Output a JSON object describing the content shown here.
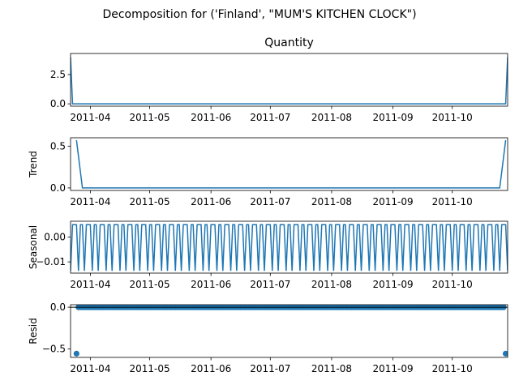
{
  "figure": {
    "suptitle": "Decomposition for ('Finland', \"MUM'S KITCHEN CLOCK\")"
  },
  "chart_data": [
    {
      "type": "line",
      "title": "Quantity",
      "ylabel": "",
      "xlim": [
        "2011-03-22",
        "2011-10-29"
      ],
      "ylim": [
        -0.2,
        4.3
      ],
      "yticks": [
        0.0,
        2.5
      ],
      "ytick_labels": [
        "0.0",
        "2.5"
      ],
      "xticks": [
        "2011-04-01",
        "2011-05-01",
        "2011-06-01",
        "2011-07-01",
        "2011-08-01",
        "2011-09-01",
        "2011-10-01"
      ],
      "xtick_labels": [
        "2011-04",
        "2011-05",
        "2011-06",
        "2011-07",
        "2011-08",
        "2011-09",
        "2011-10"
      ],
      "series": [
        {
          "x": [
            "2011-03-22",
            "2011-03-23",
            "2011-10-28",
            "2011-10-29"
          ],
          "y": [
            4.0,
            0.0,
            0.0,
            4.0
          ]
        }
      ]
    },
    {
      "type": "line",
      "title": "",
      "ylabel": "Trend",
      "xlim": [
        "2011-03-22",
        "2011-10-29"
      ],
      "ylim": [
        -0.03,
        0.6
      ],
      "yticks": [
        0.0,
        0.5
      ],
      "ytick_labels": [
        "0.0",
        "0.5"
      ],
      "xticks": [
        "2011-04-01",
        "2011-05-01",
        "2011-06-01",
        "2011-07-01",
        "2011-08-01",
        "2011-09-01",
        "2011-10-01"
      ],
      "xtick_labels": [
        "2011-04",
        "2011-05",
        "2011-06",
        "2011-07",
        "2011-08",
        "2011-09",
        "2011-10"
      ],
      "series": [
        {
          "x": [
            "2011-03-25",
            "2011-03-28",
            "2011-10-25",
            "2011-10-28"
          ],
          "y": [
            0.571,
            0.0,
            0.0,
            0.571
          ]
        }
      ]
    },
    {
      "type": "line",
      "title": "",
      "ylabel": "Seasonal",
      "xlim": [
        "2011-03-22",
        "2011-10-29"
      ],
      "ylim": [
        -0.0145,
        0.0063
      ],
      "yticks": [
        -0.01,
        0.0
      ],
      "ytick_labels": [
        "−0.01",
        "0.00"
      ],
      "xticks": [
        "2011-04-01",
        "2011-05-01",
        "2011-06-01",
        "2011-07-01",
        "2011-08-01",
        "2011-09-01",
        "2011-10-01"
      ],
      "xtick_labels": [
        "2011-04",
        "2011-05",
        "2011-06",
        "2011-07",
        "2011-08",
        "2011-09",
        "2011-10"
      ],
      "series": [
        {
          "start": "2011-03-22",
          "period_days": 7,
          "weekly_values": [
            -0.0136,
            0.0049,
            0.0049,
            0.0049,
            -0.0136,
            0.0049,
            0.0049
          ]
        }
      ]
    },
    {
      "type": "scatter",
      "title": "",
      "ylabel": "Resid",
      "xlim": [
        "2011-03-22",
        "2011-10-29"
      ],
      "ylim": [
        -0.6,
        0.03
      ],
      "yticks": [
        -0.5,
        0.0
      ],
      "ytick_labels": [
        "−0.5",
        "0.0"
      ],
      "xticks": [
        "2011-04-01",
        "2011-05-01",
        "2011-06-01",
        "2011-07-01",
        "2011-08-01",
        "2011-09-01",
        "2011-10-01"
      ],
      "xtick_labels": [
        "2011-04",
        "2011-05",
        "2011-06",
        "2011-07",
        "2011-08",
        "2011-09",
        "2011-10"
      ],
      "baseline": 0,
      "series": [
        {
          "start": "2011-03-25",
          "end": "2011-10-28",
          "default_y": 0.0,
          "outliers": [
            {
              "x": "2011-03-25",
              "y": -0.555
            },
            {
              "x": "2011-10-28",
              "y": -0.555
            }
          ]
        }
      ]
    }
  ]
}
